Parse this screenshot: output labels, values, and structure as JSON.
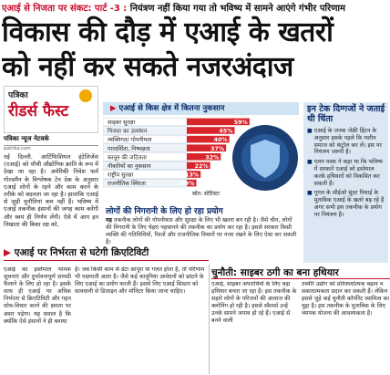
{
  "kicker": {
    "series": "एआई से निजता पर संकट: पार्ट -3 :",
    "summary": "नियंत्रण नहीं किया गया तो भविष्य में सामने आएंगे गंभीर परिणाम"
  },
  "headline": {
    "line1": "विकास की दौड़ में एआई के खतरों",
    "line2": "को नहीं कर सकते नजरअंदाज"
  },
  "logo": {
    "top": "पत्रिका",
    "main": "रीडर्स फैस्ट"
  },
  "byline": {
    "name": "पत्रिका न्यूज नेटवर्क",
    "site": "patrika.com"
  },
  "intro": "नई दिल्ली. आर्टिफिशियल इंटेलिजेंस (एआई) को चौथी औद्योगिक क्रांति के रूप में देखा जा रहा है। अमेरिकी निवेश फर्म गोल्डमैन के विश्लेषक टेन देक के अनुसार एआई लोगों के रहने और काम करने के तरीके को बदलता जा रहा है। हालांकि एआई से जुड़ी चुनौतियां कम नहीं हैं। भविष्य में एआई तकनीक इंसानों की जगह काम करेंगी और स्वयं ही निर्णय लेंगी। ऐसे में आप इन निखाता की बिका रक्ष को,",
  "chart_data": {
    "type": "bar",
    "title": "एआई से किस क्षेत्र में कितना नुकसान",
    "categories": [
      "साइबर सुरक्षा",
      "निजता का उल्लंघन",
      "व्यक्तिगत/ गोपनीयता",
      "पारदर्शिता, निष्पक्षता",
      "कानून की जटिलता",
      "नौकरियों का नुकसान",
      "राष्ट्रीय सुरक्षा",
      "राजनीतिक स्थिरता"
    ],
    "values": [
      59,
      45,
      40,
      37,
      32,
      22,
      13,
      9
    ],
    "value_labels": [
      "59%",
      "45%",
      "40%",
      "37%",
      "32%",
      "22%",
      "13%",
      "09%"
    ],
    "source": "स्रोत: स्टेटिस्टा",
    "colors": [
      "#d7252b",
      "#d7252b",
      "#d7252b",
      "#d7252b",
      "#d7252b",
      "#d7252b",
      "#d7252b",
      "#d7252b"
    ],
    "row_colors": [
      "#ffffff",
      "#eef3f8"
    ]
  },
  "side": {
    "title": "इन टेक दिग्गजों ने जताई थी चिंता",
    "items": [
      "एआई के जनक जेफ्री हिंटन के अनुसार इसके पहले कि मशीन समाज को कंट्रोल कर लें। इस पर नियंत्रण जरूरी है।",
      "एलन मस्क ने कहा था कि भविष्य में सरकारें एआई को इस्तेमाल करके हथियारों को विकसित कर सकती हैं।",
      "गूगल के सीईओ सुंदर पिचाई के मुताबिक एआई के खतरे बढ़ रहे हैं अगर सभी इस तकनीक के प्रयोग पर नियंत्रण है।"
    ]
  },
  "monitor": {
    "title": "लोगों की निगरानी के लिए हो रहा प्रयोग",
    "lead": "यह",
    "body": "तकनीक लोगों की गोपनीयता और सुरक्षा के लिए भी खतरा बन रही है। जैसे चीन, लोगों की निगरानी के लिए चेहरा पहचानने की तकनीक का प्रयोग कर रहा है। इससे सरकार किसी व्यक्ति की गतिविधियों, रिश्तों और राजनीतिक विचारों पर नजर रखने के लिए ऐसा कर सकती है।"
  },
  "section_left": {
    "title": "एआई पर निर्भरता से घटेगी क्रिएटिविटी",
    "col1": "एआई का इस्तेमाल भामक सूचनाएं और दुर्भावनापूर्ण सामग्री फैलाने के लिए हो रहा है। इसके साथ ही एआई पर अधिक निर्भरता से क्रिएटिविटी और गहन सोच-विचार करने की क्षमता पर असर पड़ेगा। यह सवाल है कि क्योंकि ऐसे इंसानों ने ही बनाया",
    "col2": "है। जब किसी काम से डेटा आपूरा या गलत होता है, तो परिणाम भी पक्षपाती आता है। जैसे कई कानूनिया आवेदनों को छांटने के लिए एआई का प्रयोग करती हैं। इससे लिए एआई सिस्टम को सावधानी से डिजाइन और मॉनिटर किया जाना चाहिए।"
  },
  "section_right": {
    "title": "चुनौती: साइबर ठगी का बना हथियार",
    "col1": "एआई, साइबर अपराधियों के लिए बड़ा हथियार बनता जा रहा है। इस तकनीक के सहारे लोगों के परिजनों की आवाज की क्लोनिंग हो रही है। इससे स्कैमर्स उन्हें उनके सामने जमाव हो रहे हैं। एआई से बनने वाली",
    "col2": "तस्वीरें उद्योग को प्रतिस्पर्धात्मक बढ़ाव व सकारात्मकता प्रदान कर सकती हैं। लेकिन इससे जुड़े कई चुनौती कॉर्पोरेट स्वामित्व का मुद्दा है। इस तकनीक के मुताबिक के लिए व्यापक योजना की आवश्यकता है।"
  }
}
